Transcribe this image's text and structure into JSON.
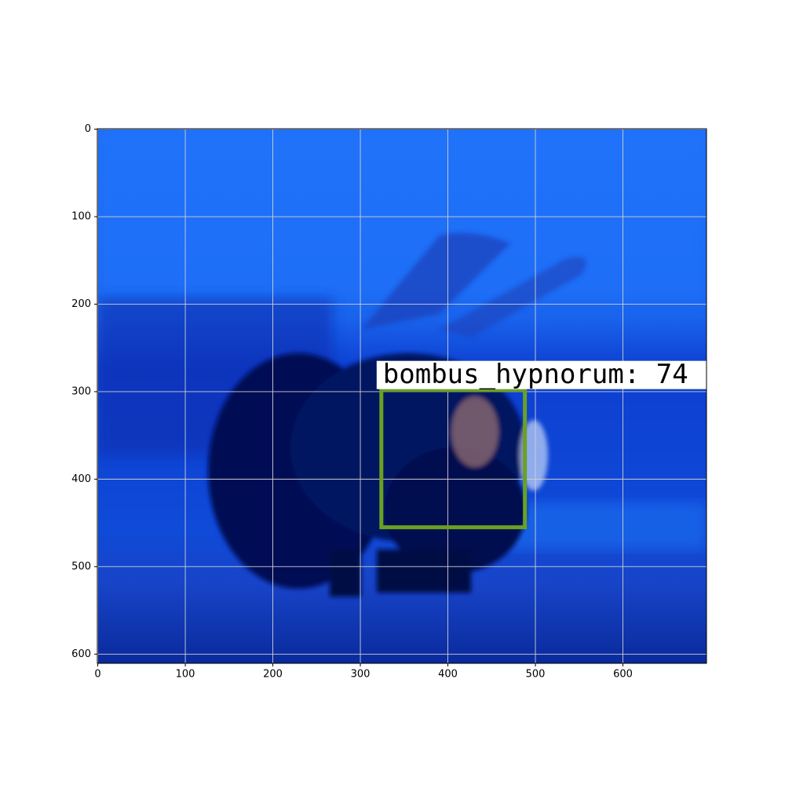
{
  "chart_data": {
    "type": "image",
    "xlim": [
      -0.5,
      695.5
    ],
    "ylim": [
      610.5,
      -0.5
    ],
    "xticks": [
      0,
      100,
      200,
      300,
      400,
      500,
      600
    ],
    "yticks": [
      0,
      100,
      200,
      300,
      400,
      500,
      600
    ],
    "grid": true,
    "box": {
      "x": [
        324,
        488
      ],
      "y": [
        298,
        455
      ],
      "color": "#6aa121"
    },
    "label": "bombus_hypnorum: 74"
  }
}
